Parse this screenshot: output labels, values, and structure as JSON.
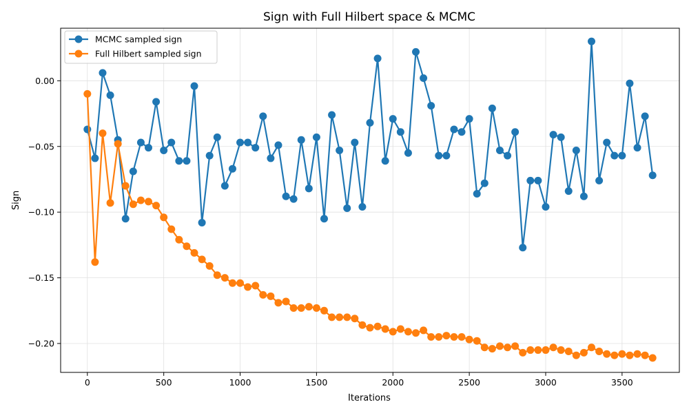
{
  "chart_data": {
    "type": "line",
    "title": "Sign with Full Hilbert space & MCMC",
    "xlabel": "Iterations",
    "ylabel": "Sign",
    "xlim": [
      -175,
      3875
    ],
    "ylim": [
      -0.222,
      0.04
    ],
    "xticks": [
      0,
      500,
      1000,
      1500,
      2000,
      2500,
      3000,
      3500
    ],
    "yticks": [
      0.0,
      -0.05,
      -0.1,
      -0.15,
      -0.2
    ],
    "ytick_labels": [
      "0.00",
      "−0.05",
      "−0.10",
      "−0.15",
      "−0.20"
    ],
    "grid": true,
    "legend_position": "upper-left",
    "x": [
      0,
      50,
      100,
      150,
      200,
      250,
      300,
      350,
      400,
      450,
      500,
      550,
      600,
      650,
      700,
      750,
      800,
      850,
      900,
      950,
      1000,
      1050,
      1100,
      1150,
      1200,
      1250,
      1300,
      1350,
      1400,
      1450,
      1500,
      1550,
      1600,
      1650,
      1700,
      1750,
      1800,
      1850,
      1900,
      1950,
      2000,
      2050,
      2100,
      2150,
      2200,
      2250,
      2300,
      2350,
      2400,
      2450,
      2500,
      2550,
      2600,
      2650,
      2700,
      2750,
      2800,
      2850,
      2900,
      2950,
      3000,
      3050,
      3100,
      3150,
      3200,
      3250,
      3300,
      3350,
      3400,
      3450,
      3500,
      3550,
      3600,
      3650,
      3700
    ],
    "series": [
      {
        "name": "MCMC sampled sign",
        "color": "#1f77b4",
        "values": [
          -0.037,
          -0.059,
          0.006,
          -0.011,
          -0.045,
          -0.105,
          -0.069,
          -0.047,
          -0.051,
          -0.016,
          -0.053,
          -0.047,
          -0.061,
          -0.061,
          -0.004,
          -0.108,
          -0.057,
          -0.043,
          -0.08,
          -0.067,
          -0.047,
          -0.047,
          -0.051,
          -0.027,
          -0.059,
          -0.049,
          -0.088,
          -0.09,
          -0.045,
          -0.082,
          -0.043,
          -0.105,
          -0.026,
          -0.053,
          -0.097,
          -0.047,
          -0.096,
          -0.032,
          0.017,
          -0.061,
          -0.029,
          -0.039,
          -0.055,
          0.022,
          0.002,
          -0.019,
          -0.057,
          -0.057,
          -0.037,
          -0.039,
          -0.029,
          -0.086,
          -0.078,
          -0.021,
          -0.053,
          -0.057,
          -0.039,
          -0.127,
          -0.076,
          -0.076,
          -0.096,
          -0.041,
          -0.043,
          -0.084,
          -0.053,
          -0.088,
          0.03,
          -0.076,
          -0.047,
          -0.057,
          -0.057,
          -0.002,
          -0.051,
          -0.027,
          -0.072
        ]
      },
      {
        "name": "Full Hilbert sampled sign",
        "color": "#ff7f0e",
        "values": [
          -0.01,
          -0.138,
          -0.04,
          -0.093,
          -0.048,
          -0.08,
          -0.094,
          -0.091,
          -0.092,
          -0.095,
          -0.104,
          -0.113,
          -0.121,
          -0.126,
          -0.131,
          -0.136,
          -0.141,
          -0.148,
          -0.15,
          -0.154,
          -0.154,
          -0.157,
          -0.156,
          -0.163,
          -0.164,
          -0.169,
          -0.168,
          -0.173,
          -0.173,
          -0.172,
          -0.173,
          -0.175,
          -0.18,
          -0.18,
          -0.18,
          -0.181,
          -0.186,
          -0.188,
          -0.187,
          -0.189,
          -0.191,
          -0.189,
          -0.191,
          -0.192,
          -0.19,
          -0.195,
          -0.195,
          -0.194,
          -0.195,
          -0.195,
          -0.197,
          -0.198,
          -0.203,
          -0.204,
          -0.202,
          -0.203,
          -0.202,
          -0.207,
          -0.205,
          -0.205,
          -0.205,
          -0.203,
          -0.205,
          -0.206,
          -0.209,
          -0.207,
          -0.203,
          -0.206,
          -0.208,
          -0.209,
          -0.208,
          -0.209,
          -0.208,
          -0.209,
          -0.211
        ]
      }
    ]
  }
}
